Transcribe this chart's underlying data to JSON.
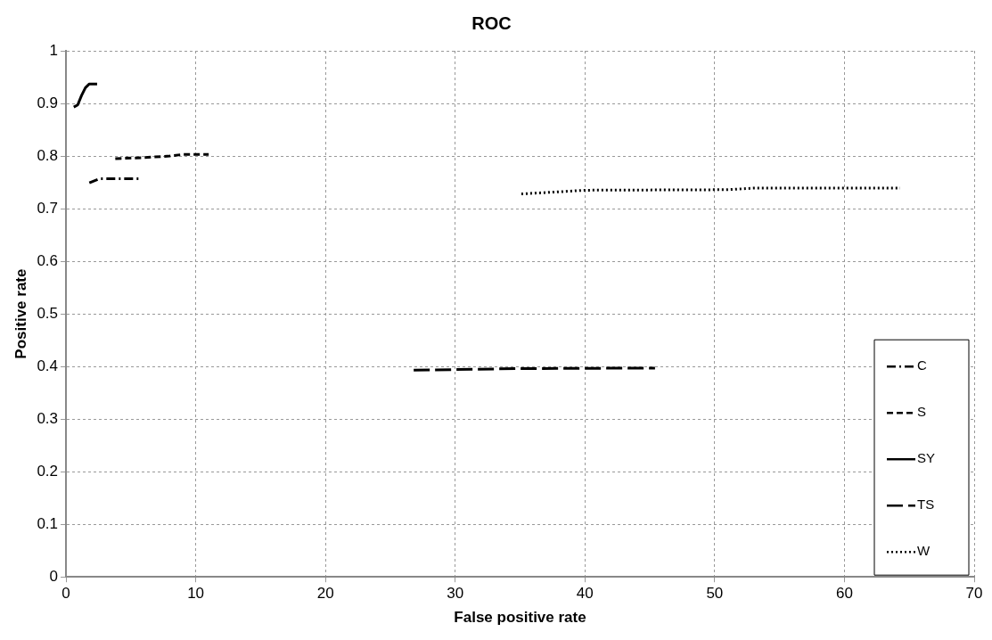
{
  "chart_data": {
    "type": "line",
    "title": "ROC",
    "xlabel": "False positive rate",
    "ylabel": "Positive rate",
    "xlim": [
      0,
      70
    ],
    "xticks": [
      0,
      10,
      20,
      30,
      40,
      50,
      60,
      70
    ],
    "ylim": [
      0,
      1
    ],
    "yticks": [
      0,
      0.1,
      0.2,
      0.3,
      0.4,
      0.5,
      0.6,
      0.7,
      0.8,
      0.9,
      1
    ],
    "grid": true,
    "legend": "bottom right",
    "marker": "none",
    "series": [
      {
        "name": "C",
        "color": "#000000",
        "line_style": "dashdot",
        "x": [
          1.8,
          2.6,
          5.6
        ],
        "values": [
          0.749,
          0.757,
          0.757
        ]
      },
      {
        "name": "S",
        "color": "#000000",
        "line_style": "dashed",
        "x": [
          3.8,
          6,
          8,
          9,
          11
        ],
        "values": [
          0.795,
          0.797,
          0.8,
          0.803,
          0.803
        ]
      },
      {
        "name": "SY",
        "color": "#000000",
        "line_style": "solid",
        "x": [
          0.6,
          0.9,
          1.2,
          1.5,
          1.8,
          2.4
        ],
        "values": [
          0.893,
          0.897,
          0.915,
          0.93,
          0.937,
          0.937
        ]
      },
      {
        "name": "TS",
        "color": "#000000",
        "line_style": "longdash",
        "x": [
          26.8,
          35,
          45.4
        ],
        "values": [
          0.393,
          0.396,
          0.397
        ]
      },
      {
        "name": "W",
        "color": "#000000",
        "line_style": "dotted",
        "x": [
          35.1,
          38,
          40,
          51,
          53,
          64.3
        ],
        "values": [
          0.728,
          0.732,
          0.735,
          0.736,
          0.739,
          0.739
        ]
      }
    ]
  }
}
